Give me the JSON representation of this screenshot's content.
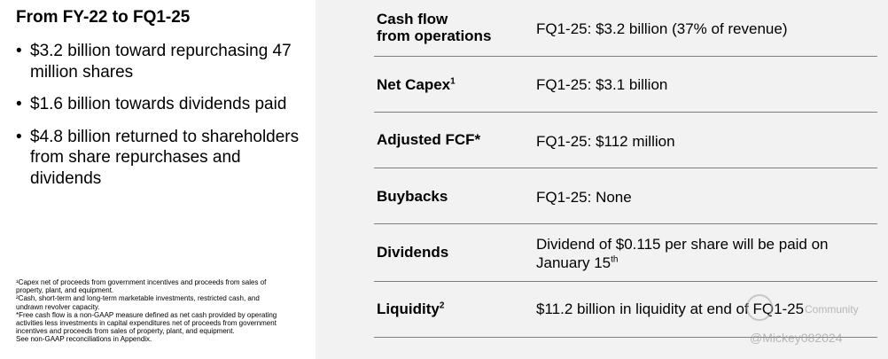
{
  "left": {
    "heading": "From FY-22 to FQ1-25",
    "bullets": [
      "$3.2 billion toward repurchasing 47 million shares",
      "$1.6 billion towards dividends paid",
      "$4.8 billion returned to shareholders from share repurchases and dividends"
    ],
    "footnotes": [
      "¹Capex net of proceeds from government incentives and proceeds from sales of property, plant, and equipment.",
      "²Cash, short-term and long-term marketable investments, restricted cash, and undrawn revolver capacity.",
      "*Free cash flow is a non-GAAP measure defined as net cash provided by operating activities less investments in capital expenditures net of proceeds from government incentives and proceeds from sales of property, plant, and equipment.",
      "See non-GAAP reconciliations in Appendix."
    ]
  },
  "rows": [
    {
      "label_line1": "Cash flow",
      "label_line2": "from operations",
      "value": "FQ1-25: $3.2 billion (37% of revenue)"
    },
    {
      "label": "Net Capex",
      "label_sup": "1",
      "value": "FQ1-25: $3.1 billion"
    },
    {
      "label": "Adjusted FCF*",
      "value": "FQ1-25: $112 million"
    },
    {
      "label": "Buybacks",
      "value": "FQ1-25: None"
    },
    {
      "label": "Dividends",
      "value_line1": "Dividend of $0.115 per share will be paid on",
      "value_line2": "January 15",
      "value_line2_sup": "th"
    },
    {
      "label": "Liquidity",
      "label_sup": "2",
      "value": "$11.2 billion in liquidity at end of FQ1-25"
    }
  ],
  "watermark": {
    "community": "Community",
    "handle": "@Mickey082024"
  }
}
